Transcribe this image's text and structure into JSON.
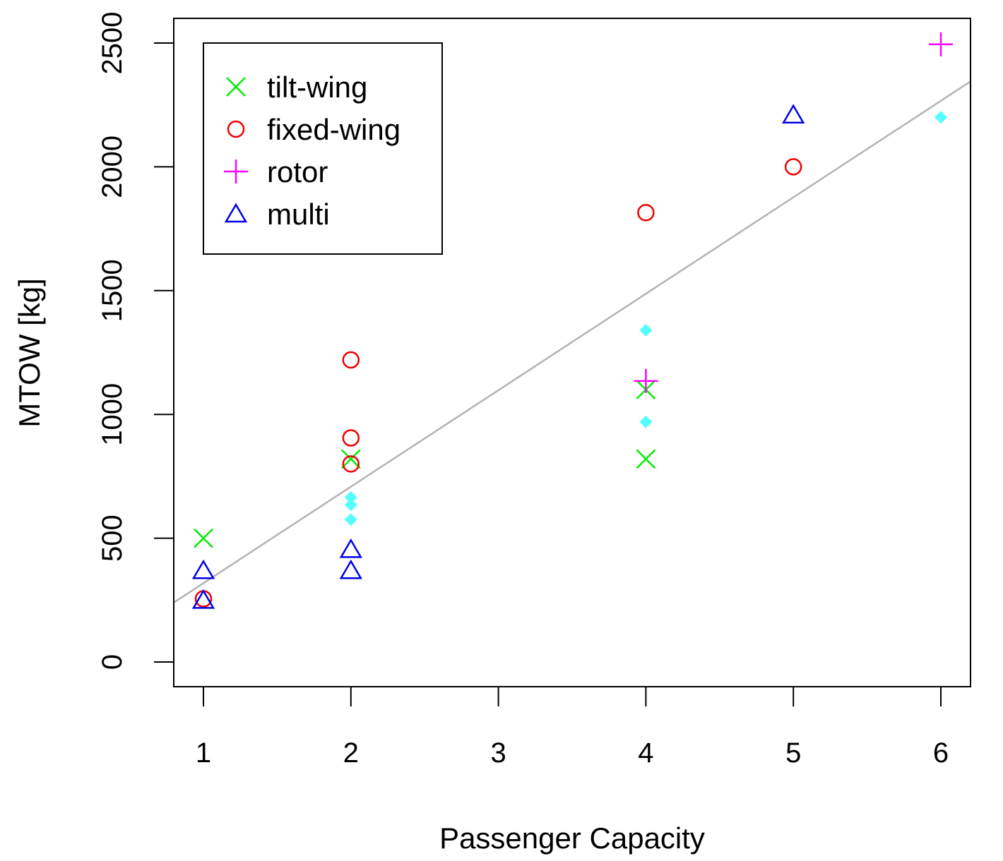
{
  "chart_data": {
    "type": "scatter",
    "xlabel": "Passenger Capacity",
    "ylabel": "MTOW [kg]",
    "xlim": [
      0.8,
      6.2
    ],
    "ylim": [
      -100,
      2600
    ],
    "x_ticks": [
      1,
      2,
      3,
      4,
      5,
      6
    ],
    "y_ticks": [
      0,
      500,
      1000,
      1500,
      2000,
      2500
    ],
    "grid": false,
    "legend_position": "top-left",
    "series": [
      {
        "name": "tilt-wing",
        "marker": "x",
        "color": "#00ee00",
        "points": [
          [
            1,
            500
          ],
          [
            2,
            820
          ],
          [
            4,
            820
          ],
          [
            4,
            1100
          ]
        ]
      },
      {
        "name": "fixed-wing",
        "marker": "circle",
        "color": "#ee0000",
        "points": [
          [
            1,
            255
          ],
          [
            2,
            800
          ],
          [
            2,
            905
          ],
          [
            2,
            1220
          ],
          [
            4,
            1815
          ],
          [
            5,
            2000
          ]
        ]
      },
      {
        "name": "rotor",
        "marker": "plus",
        "color": "#ff00ff",
        "points": [
          [
            4,
            1135
          ],
          [
            6,
            2495
          ]
        ]
      },
      {
        "name": "multi",
        "marker": "triangle",
        "color": "#0000ee",
        "points": [
          [
            1,
            250
          ],
          [
            1,
            370
          ],
          [
            2,
            370
          ],
          [
            2,
            455
          ],
          [
            5,
            2210
          ]
        ]
      },
      {
        "name": "",
        "marker": "diamond",
        "color": "#55ffff",
        "points": [
          [
            2,
            575
          ],
          [
            2,
            635
          ],
          [
            2,
            665
          ],
          [
            4,
            970
          ],
          [
            4,
            1340
          ],
          [
            6,
            2200
          ]
        ]
      }
    ],
    "fit_line": {
      "color": "#b3b3b3",
      "points": [
        [
          0.8,
          240
        ],
        [
          6.2,
          2345
        ]
      ]
    }
  }
}
